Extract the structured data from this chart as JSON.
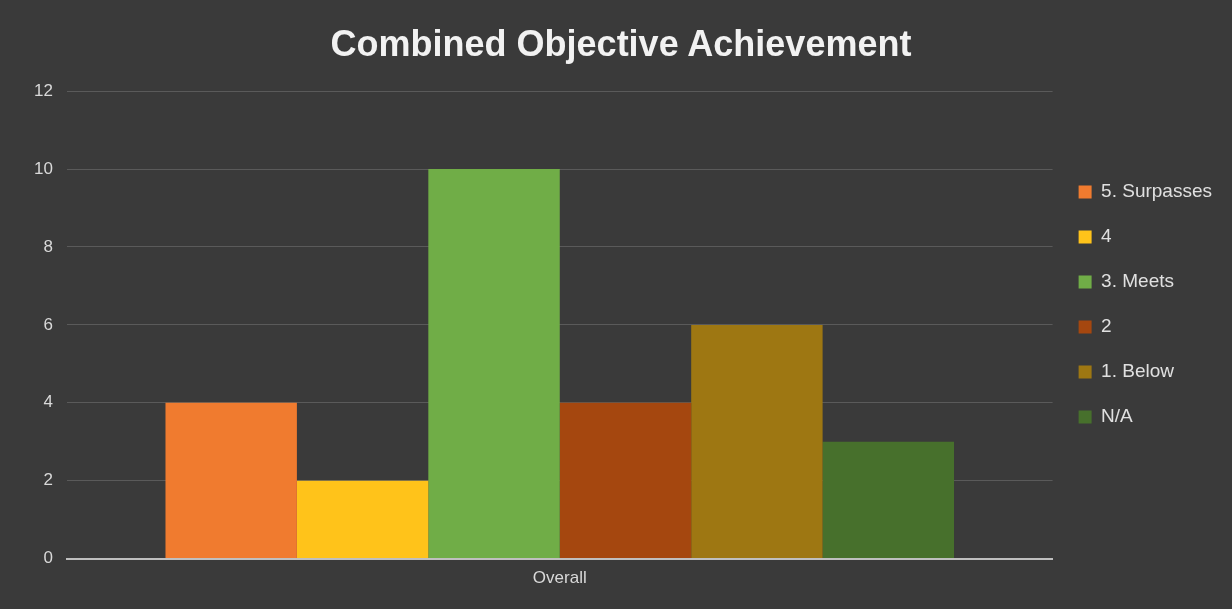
{
  "chart_data": {
    "type": "bar",
    "title": "Combined Objective Achievement",
    "categories": [
      "Overall"
    ],
    "series": [
      {
        "name": "5. Surpasses",
        "color": "#f07b2f",
        "values": [
          4
        ]
      },
      {
        "name": "4",
        "color": "#ffc31a",
        "values": [
          2
        ]
      },
      {
        "name": "3. Meets",
        "color": "#70ad47",
        "values": [
          10
        ]
      },
      {
        "name": "2",
        "color": "#a5470f",
        "values": [
          4
        ]
      },
      {
        "name": "1. Below",
        "color": "#9e7712",
        "values": [
          6
        ]
      },
      {
        "name": "N/A",
        "color": "#47702c",
        "values": [
          3
        ]
      }
    ],
    "ylim": [
      0,
      12
    ],
    "yticks": [
      0,
      2,
      4,
      6,
      8,
      10,
      12
    ],
    "grid": "y",
    "legend": "right"
  }
}
